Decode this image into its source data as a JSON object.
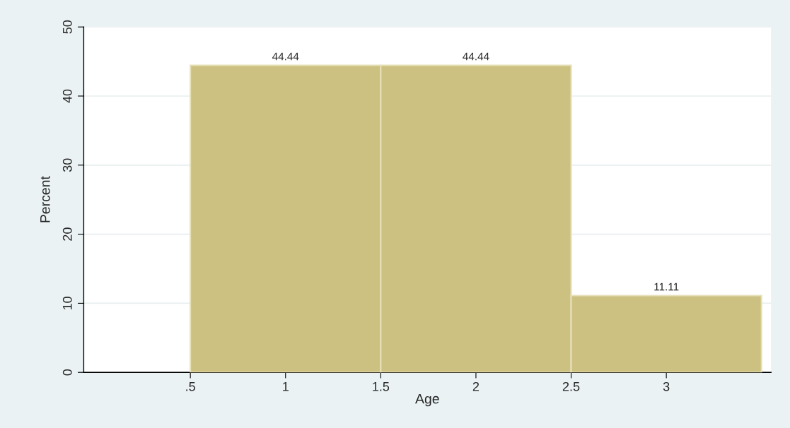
{
  "chart_data": {
    "type": "histogram",
    "xlabel": "Age",
    "ylabel": "Percent",
    "bins": [
      0.5,
      1.5,
      2.5,
      3.5
    ],
    "values": [
      44.44,
      44.44,
      11.11
    ],
    "color": "#cdc181",
    "data_labels": true,
    "xlim": [
      -0.06,
      3.55
    ],
    "ylim": [
      0,
      50
    ],
    "xticks": [
      {
        "value": 0.5,
        "label": ".5"
      },
      1,
      1.5,
      2,
      2.5,
      3
    ],
    "yticks": [
      0,
      10,
      20,
      30,
      40,
      50
    ],
    "grid": "y",
    "legend": false
  }
}
